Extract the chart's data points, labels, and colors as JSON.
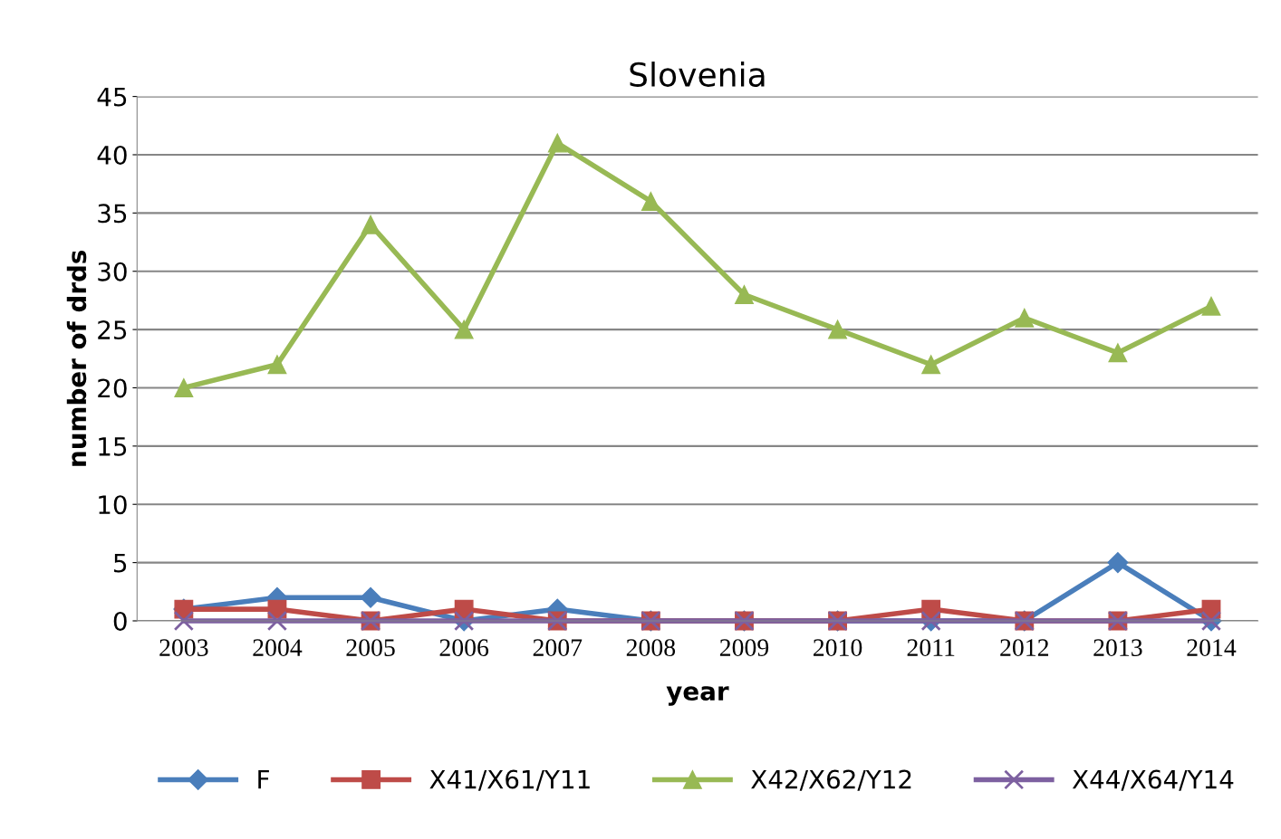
{
  "chart_data": {
    "type": "line",
    "title": "Slovenia",
    "xlabel": "year",
    "ylabel": "number of drds",
    "categories": [
      "2003",
      "2004",
      "2005",
      "2006",
      "2007",
      "2008",
      "2009",
      "2010",
      "2011",
      "2012",
      "2013",
      "2014"
    ],
    "series": [
      {
        "name": "F",
        "color": "#4a7ebb",
        "marker": "diamond",
        "values": [
          1,
          2,
          2,
          0,
          1,
          0,
          0,
          0,
          0,
          0,
          5,
          0
        ]
      },
      {
        "name": "X41/X61/Y11",
        "color": "#be4b48",
        "marker": "square",
        "values": [
          1,
          1,
          0,
          1,
          0,
          0,
          0,
          0,
          1,
          0,
          0,
          1
        ]
      },
      {
        "name": "X42/X62/Y12",
        "color": "#98b954",
        "marker": "triangle",
        "values": [
          20,
          22,
          34,
          25,
          41,
          36,
          28,
          25,
          22,
          26,
          23,
          27
        ]
      },
      {
        "name": "X44/X64/Y14",
        "color": "#7d60a0",
        "marker": "cross",
        "values": [
          0,
          0,
          0,
          0,
          0,
          0,
          0,
          0,
          0,
          0,
          0,
          0
        ]
      }
    ],
    "ylim": [
      0,
      45
    ],
    "yticks": [
      0,
      5,
      10,
      15,
      20,
      25,
      30,
      35,
      40,
      45
    ],
    "grid": "y",
    "legend": "bottom",
    "line_style": "solid"
  }
}
